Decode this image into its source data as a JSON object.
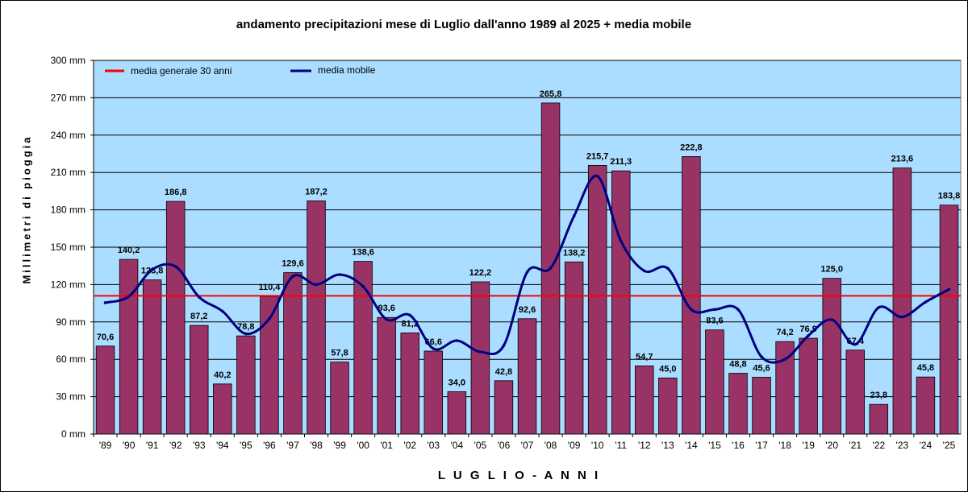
{
  "chart_data": {
    "type": "bar",
    "title": "andamento precipitazioni mese di Luglio dall'anno 1989 al 2025 + media mobile",
    "xlabel": "L U G L I O  -  A N N I",
    "ylabel": "Millimetri di pioggia",
    "ylim": [
      0,
      300
    ],
    "yticks": [
      "0 mm",
      "30 mm",
      "60 mm",
      "90 mm",
      "120 mm",
      "150 mm",
      "180 mm",
      "210 mm",
      "240 mm",
      "270 mm",
      "300 mm"
    ],
    "ytick_values": [
      0,
      30,
      60,
      90,
      120,
      150,
      180,
      210,
      240,
      270,
      300
    ],
    "categories": [
      "'89",
      "'90",
      "'91",
      "'92",
      "'93",
      "'94",
      "'95",
      "'96",
      "'97",
      "'98",
      "'99",
      "'00",
      "'01",
      "'02",
      "'03",
      "'04",
      "'05",
      "'06",
      "'07",
      "'08",
      "'09",
      "'10",
      "'11",
      "'12",
      "'13",
      "'14",
      "'15",
      "'16",
      "'17",
      "'18",
      "'19",
      "'20",
      "'21",
      "'22",
      "'23",
      "'24",
      "'25"
    ],
    "values": [
      70.6,
      140.2,
      123.8,
      186.8,
      87.2,
      40.2,
      78.8,
      110.4,
      129.6,
      187.2,
      57.8,
      138.6,
      93.6,
      81.2,
      66.6,
      34.0,
      122.2,
      42.8,
      92.6,
      265.8,
      138.2,
      215.7,
      211.3,
      54.7,
      45.0,
      222.8,
      83.6,
      48.8,
      45.6,
      74.2,
      76.9,
      125.0,
      67.4,
      23.8,
      213.6,
      45.8,
      183.8
    ],
    "value_labels": [
      "70,6",
      "140,2",
      "123,8",
      "186,8",
      "87,2",
      "40,2",
      "78,8",
      "110,4",
      "129,6",
      "187,2",
      "57,8",
      "138,6",
      "93,6",
      "81,2",
      "66,6",
      "34,0",
      "122,2",
      "42,8",
      "92,6",
      "265,8",
      "138,2",
      "215,7",
      "211,3",
      "54,7",
      "45,0",
      "222,8",
      "83,6",
      "48,8",
      "45,6",
      "74,2",
      "76,9",
      "125,0",
      "67,4",
      "23,8",
      "213,6",
      "45,8",
      "183,8"
    ],
    "moving_average": [
      105.4,
      110.4,
      132.0,
      134.5,
      110.0,
      98.6,
      80.5,
      92.6,
      126.6,
      120.0,
      128.0,
      118.5,
      92.0,
      95.4,
      68.5,
      75.0,
      66.0,
      71.0,
      130.0,
      133.2,
      175.0,
      207.0,
      155.0,
      131.0,
      133.0,
      100.0,
      100.0,
      100.0,
      62.0,
      60.0,
      79.0,
      91.8,
      72.0,
      101.6,
      94.0,
      106.0,
      116.2
    ],
    "reference_line": 111,
    "legend": [
      {
        "label": "media generale 30 anni",
        "color": "#ff0000"
      },
      {
        "label": "media mobile",
        "color": "#000080"
      }
    ],
    "legend_position": "top-left",
    "grid": true,
    "colors": {
      "bar": "#993366",
      "plot_bg": "#aaddff",
      "avg_line": "#ff0000",
      "moving_avg": "#000080"
    }
  }
}
